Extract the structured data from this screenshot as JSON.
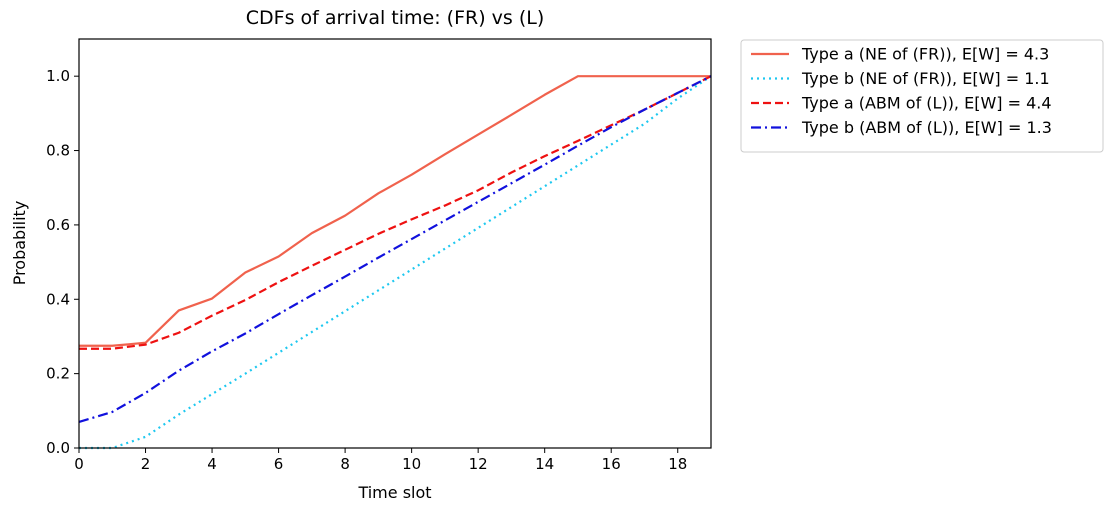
{
  "chart_data": {
    "type": "line",
    "title": "CDFs of arrival time: (FR) vs (L)",
    "xlabel": "Time slot",
    "ylabel": "Probability",
    "xlim": [
      0,
      19
    ],
    "ylim": [
      0,
      1.1
    ],
    "xticks": [
      0,
      2,
      4,
      6,
      8,
      10,
      12,
      14,
      16,
      18
    ],
    "yticks": [
      0.0,
      0.2,
      0.4,
      0.6,
      0.8,
      1.0
    ],
    "xtick_labels": [
      "0",
      "2",
      "4",
      "6",
      "8",
      "10",
      "12",
      "14",
      "16",
      "18"
    ],
    "ytick_labels": [
      "0.0",
      "0.2",
      "0.4",
      "0.6",
      "0.8",
      "1.0"
    ],
    "grid": false,
    "legend_position": "outside-top-right",
    "x": [
      0,
      1,
      2,
      3,
      4,
      5,
      6,
      7,
      8,
      9,
      10,
      11,
      12,
      13,
      14,
      15,
      16,
      17,
      18,
      19
    ],
    "series": [
      {
        "name": "Type a (NE of (FR)), E[W] = 4.3",
        "color": "#f0624d",
        "style": "solid",
        "values": [
          0.275,
          0.275,
          0.283,
          0.37,
          0.402,
          0.472,
          0.515,
          0.578,
          0.625,
          0.685,
          0.735,
          0.79,
          0.843,
          0.896,
          0.95,
          1.0,
          1.0,
          1.0,
          1.0,
          1.0
        ]
      },
      {
        "name": "Type b (NE of (FR)), E[W] = 1.1",
        "color": "#1ec8f0",
        "style": "dotted",
        "values": [
          0.0,
          0.0,
          0.03,
          0.09,
          0.145,
          0.2,
          0.256,
          0.312,
          0.368,
          0.424,
          0.48,
          0.536,
          0.592,
          0.648,
          0.704,
          0.76,
          0.816,
          0.872,
          0.94,
          1.0
        ]
      },
      {
        "name": "Type a (ABM of (L)), E[W] = 4.4",
        "color": "#ee1111",
        "style": "dashed",
        "values": [
          0.267,
          0.267,
          0.278,
          0.31,
          0.356,
          0.398,
          0.446,
          0.49,
          0.533,
          0.576,
          0.615,
          0.652,
          0.693,
          0.741,
          0.785,
          0.826,
          0.868,
          0.91,
          0.955,
          1.0
        ]
      },
      {
        "name": "Type b (ABM of (L)), E[W] = 1.3",
        "color": "#1111dd",
        "style": "dashdot",
        "values": [
          0.07,
          0.097,
          0.148,
          0.208,
          0.26,
          0.308,
          0.36,
          0.411,
          0.461,
          0.512,
          0.562,
          0.612,
          0.662,
          0.712,
          0.762,
          0.813,
          0.863,
          0.91,
          0.955,
          1.0
        ]
      }
    ]
  }
}
